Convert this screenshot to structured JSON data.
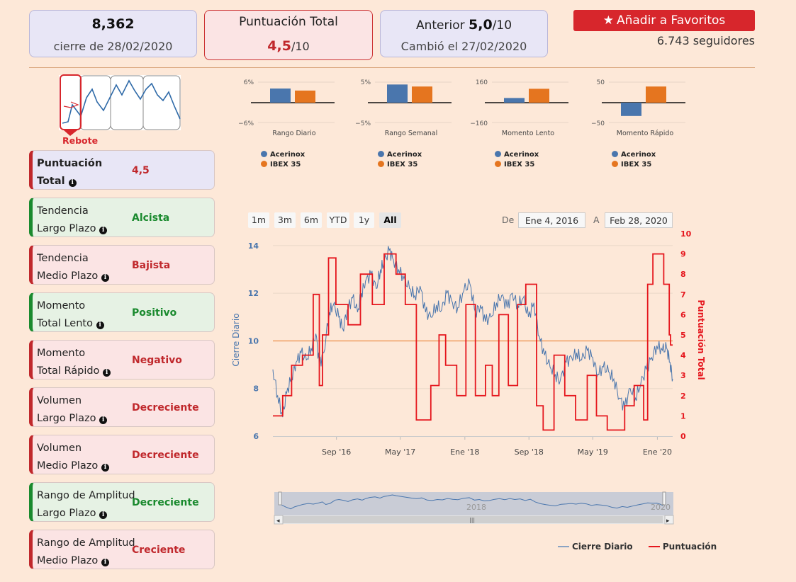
{
  "header": {
    "price": "8,362",
    "price_sub": "cierre de 28/02/2020",
    "score_title": "Puntuación Total",
    "score_value": "4,5",
    "score_suffix": "/10",
    "prev_prefix": "Anterior",
    "prev_value": "5,0",
    "prev_suffix": "/10",
    "prev_sub": "Cambió el 27/02/2020",
    "fav_label": "Añadir a Favoritos",
    "followers": "6.743 seguidores"
  },
  "pattern_label": "Rebote",
  "signals": [
    {
      "l1": "Puntuación",
      "l2": "Total",
      "value": "4,5",
      "kind": "total"
    },
    {
      "l1": "Tendencia",
      "l2": "Largo Plazo",
      "value": "Alcista",
      "kind": "pos"
    },
    {
      "l1": "Tendencia",
      "l2": "Medio Plazo",
      "value": "Bajista",
      "kind": "neg"
    },
    {
      "l1": "Momento",
      "l2": "Total Lento",
      "value": "Positivo",
      "kind": "pos"
    },
    {
      "l1": "Momento",
      "l2": "Total Rápido",
      "value": "Negativo",
      "kind": "neg"
    },
    {
      "l1": "Volumen",
      "l2": "Largo Plazo",
      "value": "Decreciente",
      "kind": "neg"
    },
    {
      "l1": "Volumen",
      "l2": "Medio Plazo",
      "value": "Decreciente",
      "kind": "neg"
    },
    {
      "l1": "Rango de Amplitud",
      "l2": "Largo Plazo",
      "value": "Decreciente",
      "kind": "pos"
    },
    {
      "l1": "Rango de Amplitud",
      "l2": "Medio Plazo",
      "value": "Creciente",
      "kind": "neg"
    }
  ],
  "colors": {
    "acerinox": "#4a76ad",
    "ibex": "#e5751f",
    "score_line": "#e5161d",
    "pos": "#1a8a2e",
    "neg": "#c0282c"
  },
  "range": {
    "buttons": [
      "1m",
      "3m",
      "6m",
      "YTD",
      "1y",
      "All"
    ],
    "selected": "All",
    "from_label": "De",
    "from_value": "Ene 4, 2016",
    "to_label": "A",
    "to_value": "Feb 28, 2020"
  },
  "navigator": {
    "label": "2018",
    "end_label": "2020"
  },
  "legend": {
    "close": "Cierre Diario",
    "score": "Puntuación"
  },
  "chart_data": [
    {
      "type": "bar",
      "title": "Rango Diario",
      "series": [
        {
          "name": "Acerinox",
          "values": [
            4.2
          ]
        },
        {
          "name": "IBEX 35",
          "values": [
            3.6
          ]
        }
      ],
      "ylim": [
        -6,
        6
      ],
      "tick_labels": [
        "6%",
        "−6%"
      ]
    },
    {
      "type": "bar",
      "title": "Rango Semanal",
      "series": [
        {
          "name": "Acerinox",
          "values": [
            4.5
          ]
        },
        {
          "name": "IBEX 35",
          "values": [
            4.0
          ]
        }
      ],
      "ylim": [
        -5,
        5
      ],
      "tick_labels": [
        "5%",
        "−5%"
      ]
    },
    {
      "type": "bar",
      "title": "Momento Lento",
      "series": [
        {
          "name": "Acerinox",
          "values": [
            37
          ]
        },
        {
          "name": "IBEX 35",
          "values": [
            110
          ]
        }
      ],
      "ylim": [
        -160,
        160
      ],
      "tick_labels": [
        "160",
        "−160"
      ]
    },
    {
      "type": "bar",
      "title": "Momento Rápido",
      "series": [
        {
          "name": "Acerinox",
          "values": [
            -33
          ]
        },
        {
          "name": "IBEX 35",
          "values": [
            40
          ]
        }
      ],
      "ylim": [
        -50,
        50
      ],
      "tick_labels": [
        "50",
        "−50"
      ]
    },
    {
      "type": "line",
      "ylabel": "Cierre Diario",
      "y2label": "Puntuación Total",
      "xlim": [
        "2016-01-04",
        "2020-02-28"
      ],
      "ylim": [
        6,
        14.5
      ],
      "y2lim": [
        0,
        10
      ],
      "x_ticks": [
        {
          "date": "2016-09-01",
          "label": "Sep '16"
        },
        {
          "date": "2017-05-01",
          "label": "May '17"
        },
        {
          "date": "2018-01-01",
          "label": "Ene '18"
        },
        {
          "date": "2018-09-01",
          "label": "Sep '18"
        },
        {
          "date": "2019-05-01",
          "label": "May '19"
        },
        {
          "date": "2020-01-01",
          "label": "Ene '20"
        }
      ],
      "y_ticks": [
        6,
        8,
        10,
        12,
        14
      ],
      "y2_ticks": [
        0,
        1,
        2,
        3,
        4,
        5,
        6,
        7,
        8,
        9,
        10
      ],
      "reference_line": 10,
      "series": [
        {
          "name": "Cierre Diario",
          "points": [
            [
              "2016-01-04",
              8.8
            ],
            [
              "2016-01-22",
              7.7
            ],
            [
              "2016-02-10",
              6.8
            ],
            [
              "2016-02-25",
              7.8
            ],
            [
              "2016-03-15",
              8.5
            ],
            [
              "2016-04-01",
              9.1
            ],
            [
              "2016-04-20",
              9.5
            ],
            [
              "2016-05-10",
              9.2
            ],
            [
              "2016-05-28",
              9.7
            ],
            [
              "2016-06-15",
              10.3
            ],
            [
              "2016-06-28",
              9.0
            ],
            [
              "2016-07-15",
              9.5
            ],
            [
              "2016-08-05",
              11.2
            ],
            [
              "2016-08-20",
              11.5
            ],
            [
              "2016-09-10",
              11.0
            ],
            [
              "2016-09-25",
              10.5
            ],
            [
              "2016-10-12",
              11.3
            ],
            [
              "2016-11-01",
              11.8
            ],
            [
              "2016-11-20",
              11.2
            ],
            [
              "2016-12-05",
              12.0
            ],
            [
              "2016-12-20",
              12.5
            ],
            [
              "2017-01-10",
              12.8
            ],
            [
              "2017-01-30",
              12.2
            ],
            [
              "2017-02-15",
              13.0
            ],
            [
              "2017-03-01",
              13.3
            ],
            [
              "2017-03-20",
              13.8
            ],
            [
              "2017-04-05",
              13.4
            ],
            [
              "2017-04-25",
              13.0
            ],
            [
              "2017-05-15",
              12.6
            ],
            [
              "2017-06-05",
              12.2
            ],
            [
              "2017-06-25",
              11.9
            ],
            [
              "2017-07-15",
              12.3
            ],
            [
              "2017-08-05",
              11.2
            ],
            [
              "2017-08-25",
              11.0
            ],
            [
              "2017-09-15",
              11.5
            ],
            [
              "2017-10-05",
              11.3
            ],
            [
              "2017-10-25",
              12.0
            ],
            [
              "2017-11-15",
              11.6
            ],
            [
              "2017-12-05",
              11.4
            ],
            [
              "2017-12-28",
              12.1
            ],
            [
              "2018-01-20",
              12.4
            ],
            [
              "2018-02-10",
              11.2
            ],
            [
              "2018-03-01",
              11.5
            ],
            [
              "2018-03-20",
              10.8
            ],
            [
              "2018-04-10",
              11.0
            ],
            [
              "2018-05-01",
              11.6
            ],
            [
              "2018-05-20",
              11.9
            ],
            [
              "2018-06-10",
              11.4
            ],
            [
              "2018-06-30",
              12.0
            ],
            [
              "2018-07-20",
              11.5
            ],
            [
              "2018-08-10",
              11.8
            ],
            [
              "2018-08-30",
              11.0
            ],
            [
              "2018-09-20",
              11.6
            ],
            [
              "2018-10-10",
              10.2
            ],
            [
              "2018-10-30",
              9.4
            ],
            [
              "2018-11-20",
              8.9
            ],
            [
              "2018-12-10",
              8.6
            ],
            [
              "2018-12-28",
              8.3
            ],
            [
              "2019-01-20",
              9.1
            ],
            [
              "2019-02-10",
              9.3
            ],
            [
              "2019-03-01",
              9.5
            ],
            [
              "2019-03-20",
              9.2
            ],
            [
              "2019-04-10",
              9.6
            ],
            [
              "2019-05-01",
              9.3
            ],
            [
              "2019-05-20",
              8.6
            ],
            [
              "2019-06-10",
              8.9
            ],
            [
              "2019-06-30",
              8.7
            ],
            [
              "2019-07-20",
              8.4
            ],
            [
              "2019-08-10",
              7.6
            ],
            [
              "2019-08-30",
              7.2
            ],
            [
              "2019-09-20",
              8.0
            ],
            [
              "2019-10-10",
              7.6
            ],
            [
              "2019-10-30",
              8.2
            ],
            [
              "2019-11-20",
              8.8
            ],
            [
              "2019-12-10",
              9.3
            ],
            [
              "2019-12-30",
              9.8
            ],
            [
              "2020-01-20",
              9.6
            ],
            [
              "2020-02-05",
              9.7
            ],
            [
              "2020-02-18",
              9.1
            ],
            [
              "2020-02-28",
              8.4
            ]
          ]
        },
        {
          "name": "Puntuación",
          "points": [
            [
              "2016-01-04",
              1.0
            ],
            [
              "2016-02-05",
              1.0
            ],
            [
              "2016-02-10",
              2.0
            ],
            [
              "2016-03-10",
              2.0
            ],
            [
              "2016-03-15",
              3.5
            ],
            [
              "2016-04-20",
              3.5
            ],
            [
              "2016-04-25",
              4.0
            ],
            [
              "2016-05-30",
              4.0
            ],
            [
              "2016-06-05",
              7.0
            ],
            [
              "2016-06-25",
              7.0
            ],
            [
              "2016-06-28",
              2.5
            ],
            [
              "2016-07-05",
              2.5
            ],
            [
              "2016-07-10",
              5.0
            ],
            [
              "2016-07-28",
              5.0
            ],
            [
              "2016-08-02",
              8.8
            ],
            [
              "2016-08-25",
              8.8
            ],
            [
              "2016-08-30",
              6.5
            ],
            [
              "2016-10-10",
              6.5
            ],
            [
              "2016-10-15",
              5.5
            ],
            [
              "2016-11-25",
              5.5
            ],
            [
              "2016-12-01",
              8.0
            ],
            [
              "2017-01-10",
              8.0
            ],
            [
              "2017-01-15",
              6.5
            ],
            [
              "2017-02-25",
              6.5
            ],
            [
              "2017-03-01",
              9.0
            ],
            [
              "2017-04-10",
              9.0
            ],
            [
              "2017-04-15",
              8.0
            ],
            [
              "2017-05-15",
              8.0
            ],
            [
              "2017-05-20",
              6.5
            ],
            [
              "2017-06-25",
              6.5
            ],
            [
              "2017-07-01",
              0.8
            ],
            [
              "2017-08-20",
              0.8
            ],
            [
              "2017-08-25",
              2.5
            ],
            [
              "2017-09-20",
              2.5
            ],
            [
              "2017-09-25",
              5.0
            ],
            [
              "2017-10-15",
              5.0
            ],
            [
              "2017-10-20",
              3.5
            ],
            [
              "2017-11-25",
              3.5
            ],
            [
              "2017-12-01",
              2.0
            ],
            [
              "2017-12-28",
              2.0
            ],
            [
              "2018-01-05",
              6.5
            ],
            [
              "2018-02-05",
              6.5
            ],
            [
              "2018-02-10",
              2.0
            ],
            [
              "2018-03-15",
              2.0
            ],
            [
              "2018-03-20",
              3.5
            ],
            [
              "2018-04-10",
              3.5
            ],
            [
              "2018-04-15",
              2.0
            ],
            [
              "2018-05-05",
              2.0
            ],
            [
              "2018-05-10",
              6.0
            ],
            [
              "2018-06-10",
              6.0
            ],
            [
              "2018-06-15",
              2.5
            ],
            [
              "2018-07-15",
              2.5
            ],
            [
              "2018-07-20",
              6.5
            ],
            [
              "2018-08-15",
              6.5
            ],
            [
              "2018-08-20",
              7.5
            ],
            [
              "2018-09-25",
              7.5
            ],
            [
              "2018-09-30",
              1.5
            ],
            [
              "2018-10-20",
              1.5
            ],
            [
              "2018-10-25",
              0.3
            ],
            [
              "2018-12-01",
              0.3
            ],
            [
              "2018-12-05",
              4.0
            ],
            [
              "2019-01-10",
              4.0
            ],
            [
              "2019-01-15",
              2.0
            ],
            [
              "2019-02-20",
              2.0
            ],
            [
              "2019-02-25",
              0.8
            ],
            [
              "2019-04-05",
              0.8
            ],
            [
              "2019-04-10",
              3.0
            ],
            [
              "2019-05-10",
              3.0
            ],
            [
              "2019-05-15",
              1.0
            ],
            [
              "2019-06-20",
              1.0
            ],
            [
              "2019-06-25",
              0.3
            ],
            [
              "2019-08-25",
              0.3
            ],
            [
              "2019-08-30",
              1.5
            ],
            [
              "2019-09-30",
              1.5
            ],
            [
              "2019-10-05",
              2.5
            ],
            [
              "2019-11-05",
              2.5
            ],
            [
              "2019-11-10",
              0.8
            ],
            [
              "2019-11-20",
              0.8
            ],
            [
              "2019-11-25",
              7.5
            ],
            [
              "2019-12-10",
              7.5
            ],
            [
              "2019-12-15",
              9.0
            ],
            [
              "2020-01-20",
              9.0
            ],
            [
              "2020-01-25",
              7.5
            ],
            [
              "2020-02-10",
              7.5
            ],
            [
              "2020-02-15",
              5.0
            ],
            [
              "2020-02-20",
              4.5
            ],
            [
              "2020-02-28",
              4.5
            ]
          ]
        }
      ]
    }
  ]
}
